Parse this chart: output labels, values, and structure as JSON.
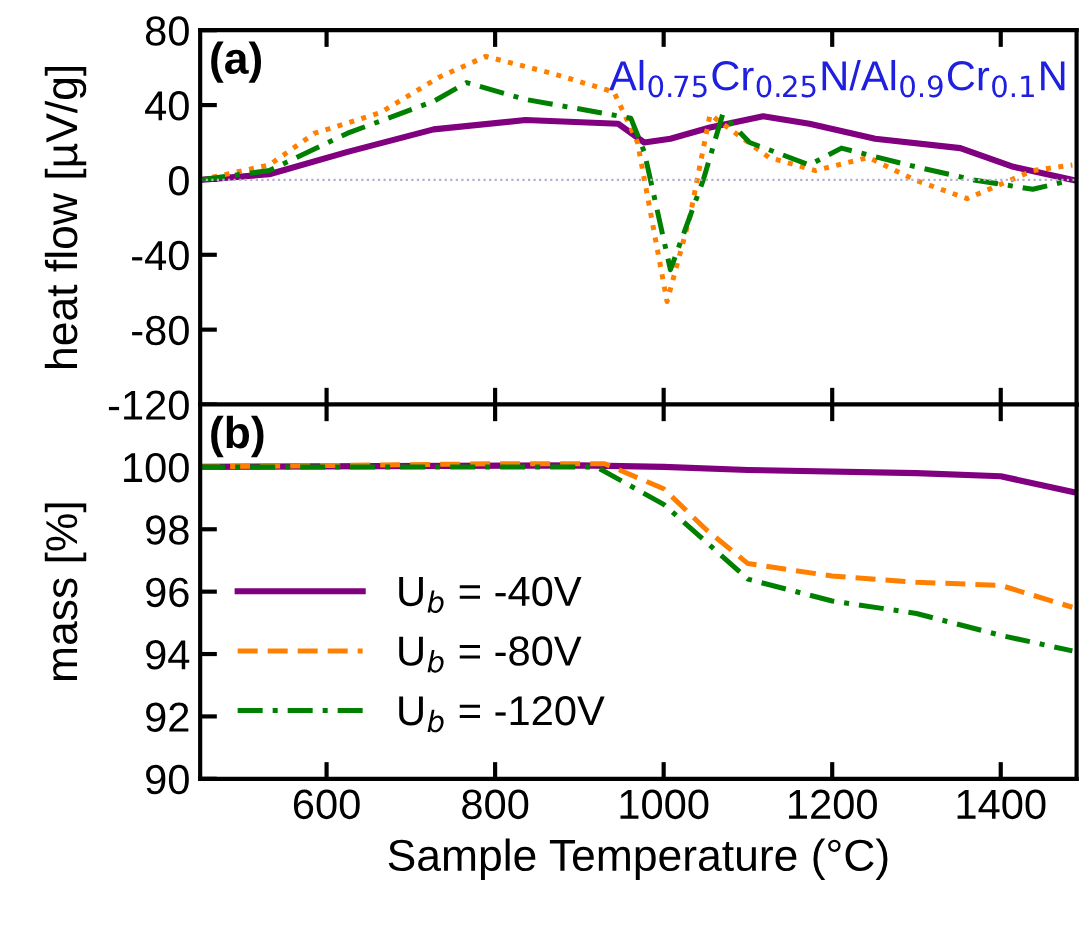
{
  "chart_data": [
    {
      "type": "line",
      "ylabel": "heat flow [µV/g]",
      "xlim": [
        450,
        1490
      ],
      "xticks": [
        600,
        800,
        1000,
        1200,
        1400
      ],
      "ylim": [
        -120,
        80
      ],
      "yticks": [
        -120,
        -80,
        -40,
        0,
        40,
        80
      ],
      "tick_labels": "y",
      "grid": false,
      "legend": false,
      "annotations": [
        "(a)",
        "Al$_{0.75}$Cr$_{0.25}$N/Al$_{0.9}$Cr$_{0.1}$N"
      ],
      "ref_lines": [
        {
          "axis": "y",
          "value": 0,
          "color": "#b0b0d0",
          "line_style": "dotted"
        }
      ],
      "series": [
        {
          "color": "#800080",
          "line_style": "solid",
          "x": [
            450,
            532,
            625,
            727,
            836,
            946,
            977,
            1008,
            1055,
            1118,
            1173,
            1251,
            1352,
            1415,
            1485
          ],
          "values": [
            0,
            3,
            15,
            27,
            32,
            30,
            20,
            22,
            28,
            34,
            30,
            22,
            17,
            7,
            0
          ]
        },
        {
          "color": "#ff8000",
          "line_style": "dotted",
          "x": [
            450,
            532,
            586,
            664,
            734,
            789,
            867,
            941,
            969,
            1004,
            1031,
            1055,
            1070,
            1125,
            1180,
            1243,
            1298,
            1360,
            1438,
            1485
          ],
          "values": [
            0,
            8,
            25,
            36,
            55,
            66,
            57,
            47,
            20,
            -65,
            -20,
            35,
            30,
            12,
            5,
            12,
            0,
            -10,
            5,
            8
          ]
        },
        {
          "color": "#008000",
          "line_style": "dashdot",
          "x": [
            450,
            532,
            625,
            727,
            766,
            836,
            899,
            961,
            977,
            1008,
            1047,
            1070,
            1102,
            1173,
            1211,
            1290,
            1368,
            1438,
            1485
          ],
          "values": [
            0,
            5,
            25,
            42,
            52,
            43,
            38,
            33,
            15,
            -48,
            0,
            35,
            20,
            8,
            17,
            8,
            0,
            -5,
            0
          ]
        }
      ]
    },
    {
      "type": "line",
      "ylabel": "mass [%]",
      "xlabel": "Sample Temperature (°C)",
      "xlim": [
        450,
        1490
      ],
      "xticks": [
        600,
        800,
        1000,
        1200,
        1400
      ],
      "ylim": [
        90,
        102
      ],
      "yticks": [
        90,
        92,
        94,
        96,
        98,
        100
      ],
      "grid": false,
      "legend": "bottom left",
      "annotations": [
        "(b)"
      ],
      "series": [
        {
          "name": "U$_{b}$ = -40V",
          "color": "#800080",
          "line_style": "solid",
          "x": [
            450,
            900,
            1000,
            1100,
            1300,
            1400,
            1485
          ],
          "values": [
            100,
            100.05,
            100,
            99.9,
            99.8,
            99.7,
            99.2
          ]
        },
        {
          "name": "U$_{b}$ = -80V",
          "color": "#ff8000",
          "line_style": "dashed",
          "x": [
            450,
            800,
            930,
            1000,
            1050,
            1100,
            1200,
            1300,
            1400,
            1485
          ],
          "values": [
            100,
            100.1,
            100.1,
            99.3,
            98,
            96.9,
            96.5,
            96.3,
            96.2,
            95.5
          ]
        },
        {
          "name": "U$_{b}$ = -120V",
          "color": "#008000",
          "line_style": "dashdot",
          "x": [
            450,
            920,
            1000,
            1050,
            1100,
            1200,
            1300,
            1400,
            1485
          ],
          "values": [
            100,
            100,
            98.8,
            97.6,
            96.4,
            95.7,
            95.3,
            94.6,
            94.1
          ]
        }
      ]
    }
  ]
}
